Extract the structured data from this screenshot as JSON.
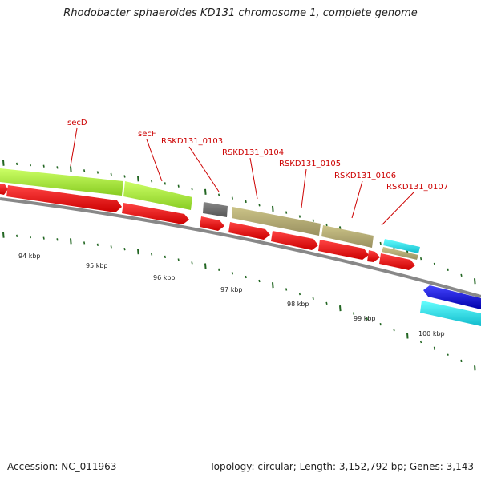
{
  "title": "Rhodobacter sphaeroides KD131 chromosome 1, complete genome",
  "accession_text": "Accession: NC_011963",
  "summary_text": "Topology: circular; Length: 3,152,792 bp; Genes: 3,143",
  "gene_labels": [
    {
      "id": "secD",
      "text": "secD"
    },
    {
      "id": "secF",
      "text": "secF"
    },
    {
      "id": "RSKD131_0103",
      "text": "RSKD131_0103"
    },
    {
      "id": "RSKD131_0104",
      "text": "RSKD131_0104"
    },
    {
      "id": "RSKD131_0105",
      "text": "RSKD131_0105"
    },
    {
      "id": "RSKD131_0106",
      "text": "RSKD131_0106"
    },
    {
      "id": "RSKD131_0107",
      "text": "RSKD131_0107"
    }
  ],
  "scale_labels": [
    "94 kbp",
    "95 kbp",
    "96 kbp",
    "97 kbp",
    "98 kbp",
    "99 kbp",
    "100 kbp"
  ],
  "colors": {
    "label_red": "#cc0000",
    "cds_red": "#e00000",
    "gene_green": "#aaee33",
    "gene_khaki": "#bbb377",
    "gene_gray": "#666666",
    "gene_cyan": "#22ddee",
    "gene_blue": "#1111dd",
    "tick_green": "#226622",
    "backbone": "#888888"
  }
}
